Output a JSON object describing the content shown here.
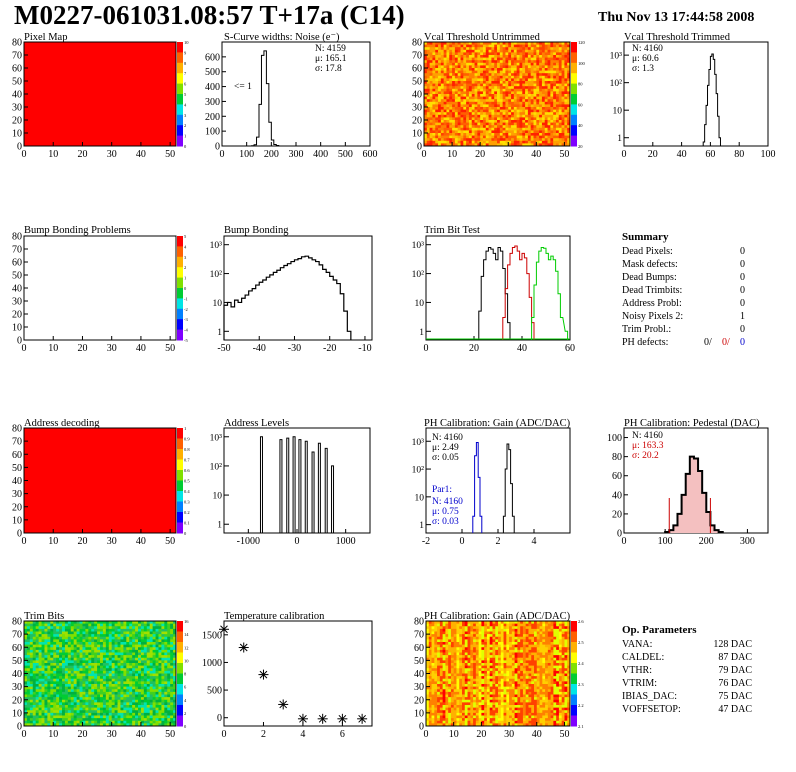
{
  "header": {
    "title": "M0227-061031.08:57 T+17a (C14)",
    "date": "Thu Nov 13 17:44:58 2008"
  },
  "colors": {
    "map_fill": "#ff0000",
    "trim_lo": "#000000",
    "trim_mid": "#cc0000",
    "trim_hi": "#00cc00",
    "par_blue": "#0000cc",
    "ped_red": "#cc0000"
  },
  "chart_data": [
    {
      "id": "pixel_map",
      "type": "heatmap",
      "title": "Pixel Map",
      "pattern": "solid",
      "xlim": [
        0,
        52
      ],
      "ylim": [
        0,
        80
      ],
      "xticks": [
        0,
        10,
        20,
        30,
        40,
        50
      ],
      "yticks": [
        0,
        10,
        20,
        30,
        40,
        50,
        60,
        70,
        80
      ],
      "zticks": [
        "10",
        "9",
        "8",
        "7",
        "6",
        "5",
        "4",
        "3",
        "2",
        "1",
        "0"
      ]
    },
    {
      "id": "scurve",
      "type": "histogram",
      "title": "S-Curve widths: Noise (e⁻)",
      "xlim": [
        0,
        600
      ],
      "ylim": [
        0,
        700
      ],
      "logy": false,
      "xticks": [
        0,
        100,
        200,
        300,
        400,
        500,
        600
      ],
      "yticks": [
        0,
        100,
        200,
        300,
        400,
        500,
        600
      ],
      "bins": [
        [
          120,
          2
        ],
        [
          130,
          8
        ],
        [
          140,
          60
        ],
        [
          150,
          280
        ],
        [
          160,
          610
        ],
        [
          170,
          640
        ],
        [
          180,
          420
        ],
        [
          190,
          160
        ],
        [
          200,
          40
        ],
        [
          210,
          10
        ],
        [
          220,
          3
        ]
      ],
      "stats": [
        "N: 4159",
        "μ: 165.1",
        "σ: 17.8"
      ],
      "annotation": "<= 1"
    },
    {
      "id": "vcal_untrimmed",
      "type": "heatmap",
      "title": "Vcal Threshold Untrimmed",
      "pattern": "noisy_orange",
      "xlim": [
        0,
        52
      ],
      "ylim": [
        0,
        80
      ],
      "xticks": [
        0,
        10,
        20,
        30,
        40,
        50
      ],
      "yticks": [
        0,
        10,
        20,
        30,
        40,
        50,
        60,
        70,
        80
      ],
      "zticks": [
        "120",
        "100",
        "80",
        "60",
        "40",
        "20"
      ]
    },
    {
      "id": "vcal_trimmed",
      "type": "histogram",
      "title": "Vcal Threshold Trimmed",
      "xlim": [
        0,
        100
      ],
      "ylim": [
        0.5,
        3000
      ],
      "logy": true,
      "xticks": [
        0,
        20,
        40,
        60,
        80,
        100
      ],
      "yticks": [
        "1",
        "10",
        "10²",
        "10³"
      ],
      "bins": [
        [
          55,
          0.7
        ],
        [
          56,
          3
        ],
        [
          57,
          15
        ],
        [
          58,
          80
        ],
        [
          59,
          300
        ],
        [
          60,
          900
        ],
        [
          61,
          1100
        ],
        [
          62,
          700
        ],
        [
          63,
          200
        ],
        [
          64,
          40
        ],
        [
          65,
          6
        ],
        [
          66,
          1
        ]
      ],
      "stats": [
        "N: 4160",
        "μ: 60.6",
        "σ: 1.3"
      ]
    },
    {
      "id": "bump_problems",
      "type": "heatmap",
      "title": "Bump Bonding Problems",
      "pattern": "empty",
      "xlim": [
        0,
        52
      ],
      "ylim": [
        0,
        80
      ],
      "xticks": [
        0,
        10,
        20,
        30,
        40,
        50
      ],
      "yticks": [
        0,
        10,
        20,
        30,
        40,
        50,
        60,
        70,
        80
      ],
      "zticks": [
        "5",
        "4",
        "3",
        "2",
        "1",
        "0",
        "-1",
        "-2",
        "-3",
        "-4",
        "-5"
      ]
    },
    {
      "id": "bump_bonding",
      "type": "histogram",
      "title": "Bump Bonding",
      "xlim": [
        -50,
        -8
      ],
      "ylim": [
        0.5,
        2000
      ],
      "logy": true,
      "xticks": [
        -50,
        -40,
        -30,
        -20,
        -10
      ],
      "yticks": [
        "1",
        "10",
        "10²",
        "10³"
      ],
      "bins": [
        [
          -50,
          8
        ],
        [
          -49,
          10
        ],
        [
          -48,
          7
        ],
        [
          -47,
          12
        ],
        [
          -46,
          10
        ],
        [
          -45,
          14
        ],
        [
          -44,
          18
        ],
        [
          -43,
          25
        ],
        [
          -42,
          30
        ],
        [
          -41,
          40
        ],
        [
          -40,
          50
        ],
        [
          -39,
          60
        ],
        [
          -38,
          75
        ],
        [
          -37,
          90
        ],
        [
          -36,
          110
        ],
        [
          -35,
          130
        ],
        [
          -34,
          160
        ],
        [
          -33,
          190
        ],
        [
          -32,
          220
        ],
        [
          -31,
          260
        ],
        [
          -30,
          300
        ],
        [
          -29,
          330
        ],
        [
          -28,
          380
        ],
        [
          -27,
          400
        ],
        [
          -26,
          350
        ],
        [
          -25,
          300
        ],
        [
          -24,
          260
        ],
        [
          -23,
          200
        ],
        [
          -22,
          140
        ],
        [
          -21,
          110
        ],
        [
          -20,
          80
        ],
        [
          -19,
          60
        ],
        [
          -18,
          45
        ],
        [
          -17,
          20
        ],
        [
          -16,
          5
        ],
        [
          -15,
          1
        ]
      ]
    },
    {
      "id": "trim_bit_test",
      "type": "histogram",
      "title": "Trim Bit Test",
      "xlim": [
        0,
        60
      ],
      "ylim": [
        0.5,
        2000
      ],
      "logy": true,
      "xticks": [
        0,
        20,
        40,
        60
      ],
      "yticks": [
        "1",
        "10",
        "10²",
        "10³"
      ],
      "series": [
        {
          "color": "#000000",
          "bins": [
            [
              22,
              5
            ],
            [
              23,
              80
            ],
            [
              24,
              300
            ],
            [
              25,
              600
            ],
            [
              26,
              800
            ],
            [
              27,
              700
            ],
            [
              28,
              500
            ],
            [
              29,
              300
            ],
            [
              30,
              800
            ],
            [
              31,
              600
            ],
            [
              32,
              150
            ],
            [
              33,
              20
            ],
            [
              34,
              2
            ]
          ]
        },
        {
          "color": "#cc0000",
          "bins": [
            [
              32,
              3
            ],
            [
              33,
              30
            ],
            [
              34,
              200
            ],
            [
              35,
              500
            ],
            [
              36,
              800
            ],
            [
              37,
              900
            ],
            [
              38,
              600
            ],
            [
              39,
              300
            ],
            [
              40,
              500
            ],
            [
              41,
              350
            ],
            [
              42,
              100
            ],
            [
              43,
              15
            ],
            [
              44,
              2
            ]
          ]
        },
        {
          "color": "#00cc00",
          "bins": [
            [
              44,
              3
            ],
            [
              45,
              40
            ],
            [
              46,
              250
            ],
            [
              47,
              600
            ],
            [
              48,
              800
            ],
            [
              49,
              750
            ],
            [
              50,
              500
            ],
            [
              51,
              300
            ],
            [
              52,
              400
            ],
            [
              53,
              300
            ],
            [
              54,
              120
            ],
            [
              55,
              20
            ],
            [
              56,
              3
            ],
            [
              58,
              1
            ]
          ]
        }
      ]
    },
    {
      "id": "summary",
      "type": "table",
      "title": "Summary",
      "rows": [
        {
          "label": "Dead Pixels:",
          "value": "0"
        },
        {
          "label": "Mask defects:",
          "value": "0"
        },
        {
          "label": "Dead Bumps:",
          "value": "0"
        },
        {
          "label": "Dead Trimbits:",
          "value": "0"
        },
        {
          "label": "Address Probl:",
          "value": "0"
        },
        {
          "label": "Noisy Pixels 2:",
          "value": "1"
        },
        {
          "label": "Trim Probl.:",
          "value": "0"
        }
      ],
      "ph_label": "PH defects:",
      "ph_values": [
        "0/",
        "0/",
        "0"
      ]
    },
    {
      "id": "address_decoding",
      "type": "heatmap",
      "title": "Address decoding",
      "pattern": "solid",
      "xlim": [
        0,
        52
      ],
      "ylim": [
        0,
        80
      ],
      "xticks": [
        0,
        10,
        20,
        30,
        40,
        50
      ],
      "yticks": [
        0,
        10,
        20,
        30,
        40,
        50,
        60,
        70,
        80
      ],
      "zticks": [
        "1",
        "0.9",
        "0.8",
        "0.7",
        "0.6",
        "0.5",
        "0.4",
        "0.3",
        "0.2",
        "0.1",
        "0"
      ]
    },
    {
      "id": "address_levels",
      "type": "histogram",
      "title": "Address Levels",
      "xlim": [
        -1500,
        1500
      ],
      "ylim": [
        0.5,
        2000
      ],
      "logy": true,
      "xticks": [
        -1000,
        0,
        1000
      ],
      "yticks": [
        "1",
        "10",
        "10²",
        "10³"
      ],
      "spikes": [
        [
          -730,
          1000
        ],
        [
          -330,
          800
        ],
        [
          -190,
          900
        ],
        [
          -60,
          1000
        ],
        [
          60,
          800
        ],
        [
          190,
          700
        ],
        [
          330,
          300
        ],
        [
          460,
          600
        ],
        [
          600,
          400
        ],
        [
          730,
          100
        ]
      ]
    },
    {
      "id": "ph_gain",
      "type": "histogram",
      "title": "PH Calibration: Gain (ADC/DAC)",
      "xlim": [
        -2,
        6
      ],
      "ylim": [
        0.5,
        3000
      ],
      "logy": true,
      "xticks": [
        -2,
        0,
        2,
        4
      ],
      "yticks": [
        "1",
        "10",
        "10²",
        "10³"
      ],
      "series": [
        {
          "color": "#000000",
          "bins": [
            [
              2.3,
              2
            ],
            [
              2.4,
              100
            ],
            [
              2.5,
              800
            ],
            [
              2.6,
              500
            ],
            [
              2.7,
              30
            ],
            [
              2.8,
              2
            ]
          ]
        },
        {
          "color": "#0000cc",
          "bins": [
            [
              0.6,
              2
            ],
            [
              0.7,
              300
            ],
            [
              0.8,
              900
            ],
            [
              0.9,
              50
            ],
            [
              1.0,
              2
            ]
          ]
        }
      ],
      "stats": [
        "N: 4160",
        "μ: 2.49",
        "σ: 0.05"
      ],
      "stats2_title": "Par1:",
      "stats2": [
        "N: 4160",
        "μ: 0.75",
        "σ: 0.03"
      ]
    },
    {
      "id": "ph_pedestal",
      "type": "histogram",
      "title": "PH Calibration: Pedestal (DAC)",
      "xlim": [
        0,
        350
      ],
      "ylim": [
        0,
        110
      ],
      "logy": false,
      "xticks": [
        0,
        100,
        200,
        300
      ],
      "yticks": [
        0,
        20,
        40,
        60,
        80,
        100
      ],
      "bins": [
        [
          100,
          1
        ],
        [
          110,
          3
        ],
        [
          120,
          8
        ],
        [
          130,
          20
        ],
        [
          140,
          40
        ],
        [
          150,
          62
        ],
        [
          160,
          80
        ],
        [
          170,
          78
        ],
        [
          180,
          65
        ],
        [
          190,
          42
        ],
        [
          200,
          22
        ],
        [
          210,
          8
        ],
        [
          220,
          3
        ],
        [
          230,
          1
        ]
      ],
      "red_lines": [
        110,
        210
      ],
      "stats": [
        "N: 4160",
        "μ: 163.3",
        "σ: 20.2"
      ]
    },
    {
      "id": "trim_bits",
      "type": "heatmap",
      "title": "Trim Bits",
      "pattern": "noisy_green",
      "xlim": [
        0,
        52
      ],
      "ylim": [
        0,
        80
      ],
      "xticks": [
        0,
        10,
        20,
        30,
        40,
        50
      ],
      "yticks": [
        0,
        10,
        20,
        30,
        40,
        50,
        60,
        70,
        80
      ],
      "zticks": [
        "16",
        "14",
        "12",
        "10",
        "8",
        "6",
        "4",
        "2",
        "0"
      ]
    },
    {
      "id": "temperature",
      "type": "scatter",
      "title": "Temperature calibration",
      "xlim": [
        0,
        7.5
      ],
      "ylim": [
        -150,
        1750
      ],
      "xticks": [
        0,
        2,
        4,
        6
      ],
      "yticks": [
        0,
        500,
        1000,
        1500
      ],
      "x": [
        0,
        1,
        2,
        3,
        4,
        5,
        6,
        7
      ],
      "y": [
        1600,
        1270,
        780,
        240,
        -20,
        -20,
        -20,
        -20
      ]
    },
    {
      "id": "ph_gain_map",
      "type": "heatmap",
      "title": "PH Calibration: Gain (ADC/DAC)",
      "pattern": "columns",
      "xlim": [
        0,
        52
      ],
      "ylim": [
        0,
        80
      ],
      "xticks": [
        0,
        10,
        20,
        30,
        40,
        50
      ],
      "yticks": [
        0,
        10,
        20,
        30,
        40,
        50,
        60,
        70,
        80
      ],
      "zticks": [
        "2.6",
        "2.5",
        "2.4",
        "2.3",
        "2.2",
        "2.1"
      ]
    },
    {
      "id": "op_params",
      "type": "table",
      "title": "Op. Parameters",
      "rows": [
        {
          "label": "VANA:",
          "value": "128 DAC"
        },
        {
          "label": "CALDEL:",
          "value": "87 DAC"
        },
        {
          "label": "VTHR:",
          "value": "79 DAC"
        },
        {
          "label": "VTRIM:",
          "value": "76 DAC"
        },
        {
          "label": "IBIAS_DAC:",
          "value": "75 DAC"
        },
        {
          "label": "VOFFSETOP:",
          "value": "47 DAC"
        }
      ]
    }
  ]
}
